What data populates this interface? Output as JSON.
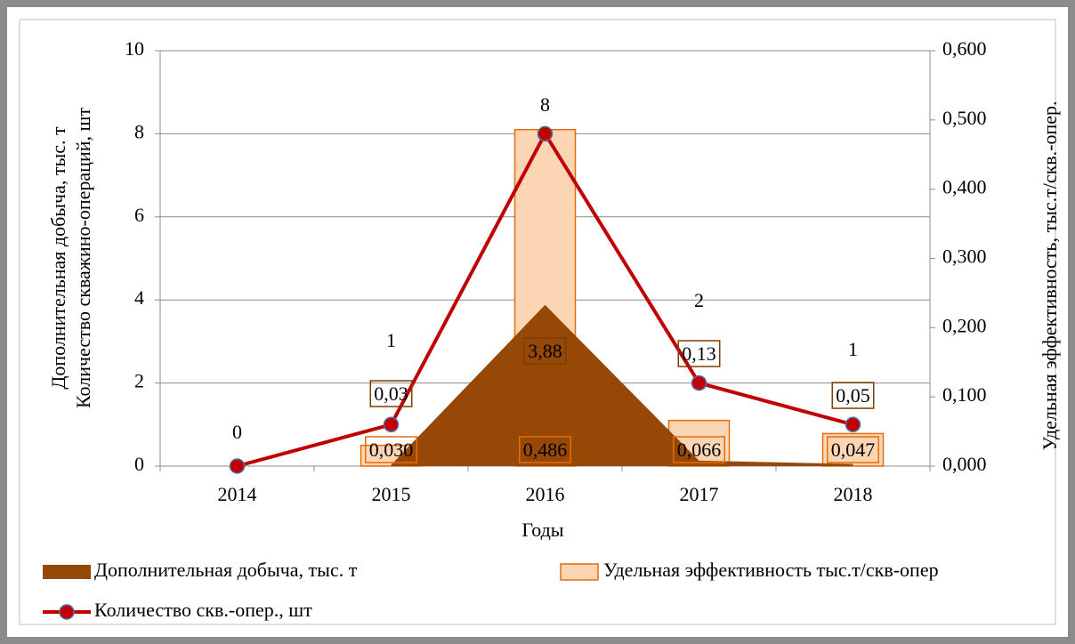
{
  "chart_data": {
    "type": "combo",
    "categories": [
      "2014",
      "2015",
      "2016",
      "2017",
      "2018"
    ],
    "xlabel": "Годы",
    "ylabel": [
      "Дополнительная добыча, тыс. т",
      "Количество скважино-операций, шт"
    ],
    "y2label": "Удельная эффективность, тыс.т/скв.-опер.",
    "ylim": [
      0,
      10
    ],
    "yticks": [
      0,
      2,
      4,
      6,
      8,
      10
    ],
    "y2lim": [
      0,
      0.6
    ],
    "y2ticks": [
      {
        "value": 0,
        "label": "0,000"
      },
      {
        "value": 0.1,
        "label": "0,100"
      },
      {
        "value": 0.2,
        "label": "0,200"
      },
      {
        "value": 0.3,
        "label": "0,300"
      },
      {
        "value": 0.4,
        "label": "0,400"
      },
      {
        "value": 0.5,
        "label": "0,500"
      },
      {
        "value": 0.6,
        "label": "0,600"
      }
    ],
    "grid": true,
    "legend": "bottom",
    "series": [
      {
        "name": "Дополнительная добыча, тыс. т",
        "type": "area",
        "color": "#974706",
        "values": [
          null,
          0.03,
          3.88,
          0.13,
          0.05
        ],
        "value_labels": [
          null,
          "0,03",
          "3,88",
          "0,13",
          "0,05"
        ]
      },
      {
        "name": "Удельная эффективность тыс.т/скв-опер",
        "type": "bar",
        "axis": "y2",
        "color": "#fcd5b5",
        "edge": "#e46c0a",
        "values": [
          null,
          0.03,
          0.486,
          0.066,
          0.047
        ],
        "value_labels": [
          null,
          "0,030",
          "0,486",
          "0,066",
          "0,047"
        ]
      },
      {
        "name": "Количество скв.-опер., шт",
        "type": "line",
        "color": "#c00000",
        "values": [
          0,
          1,
          8,
          2,
          1
        ]
      }
    ]
  }
}
